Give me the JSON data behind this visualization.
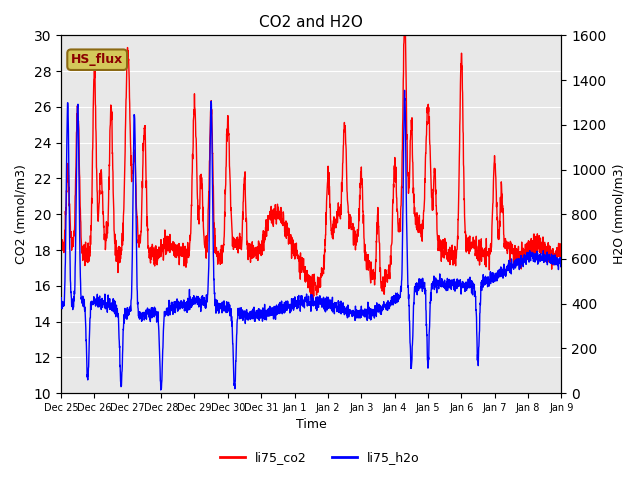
{
  "title": "CO2 and H2O",
  "xlabel": "Time",
  "ylabel_left": "CO2 (mmol/m3)",
  "ylabel_right": "H2O (mmol/m3)",
  "ylim_left": [
    10,
    30
  ],
  "ylim_right": [
    0,
    1600
  ],
  "yticks_left": [
    10,
    12,
    14,
    16,
    18,
    20,
    22,
    24,
    26,
    28,
    30
  ],
  "yticks_right": [
    0,
    200,
    400,
    600,
    800,
    1000,
    1200,
    1400,
    1600
  ],
  "xtick_labels": [
    "Dec 25",
    "Dec 26",
    "Dec 27",
    "Dec 28",
    "Dec 29",
    "Dec 30",
    "Dec 31",
    "Jan 1",
    "Jan 2",
    "Jan 3",
    "Jan 4",
    "Jan 5",
    "Jan 6",
    "Jan 7",
    "Jan 8",
    "Jan 9"
  ],
  "bg_color": "#e8e8e8",
  "label_box_color": "#d4c85a",
  "label_box_text": "HS_flux",
  "label_box_text_color": "#8b0000",
  "co2_color": "red",
  "h2o_color": "blue",
  "linewidth": 1.0,
  "xlim": [
    0,
    15
  ],
  "n_days": 16
}
